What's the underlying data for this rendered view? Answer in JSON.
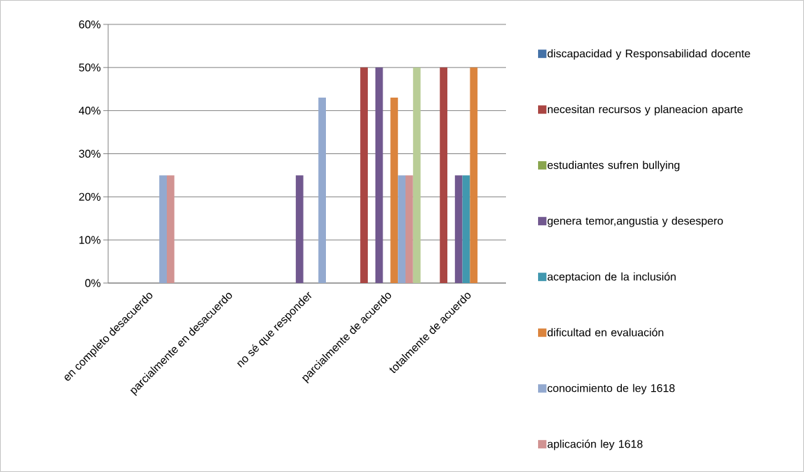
{
  "chart_data": {
    "type": "bar",
    "categories": [
      "en completo desacuerdo",
      "parcialmente en desacuerdo",
      "no sé que responder",
      "parcialmente de acuerdo",
      "totalmente de acuerdo"
    ],
    "series": [
      {
        "name": "discapacidad y  Responsabilidad docente",
        "color": "#4572a7",
        "values": [
          0,
          0,
          0,
          0,
          0
        ]
      },
      {
        "name": "necesitan recursos y planeacion aparte",
        "color": "#aa4643",
        "values": [
          0,
          0,
          0,
          50,
          50
        ]
      },
      {
        "name": "estudiantes sufren bullying",
        "color": "#89a54e",
        "values": [
          0,
          0,
          0,
          0,
          0
        ]
      },
      {
        "name": "genera temor,angustia y desespero",
        "color": "#71588f",
        "values": [
          0,
          0,
          25,
          50,
          25
        ]
      },
      {
        "name": "aceptacion de la inclusión",
        "color": "#4198af",
        "values": [
          0,
          0,
          0,
          0,
          25
        ]
      },
      {
        "name": "dificultad en evaluación",
        "color": "#db843d",
        "values": [
          0,
          0,
          0,
          43,
          50
        ]
      },
      {
        "name": "conocimiento de ley 1618",
        "color": "#93a9cf",
        "values": [
          25,
          0,
          43,
          25,
          0
        ]
      },
      {
        "name": "aplicación ley 1618",
        "color": "#d19392",
        "values": [
          25,
          0,
          0,
          25,
          0
        ]
      },
      {
        "color": "#b9cd96",
        "values": [
          0,
          0,
          0,
          50,
          0
        ]
      }
    ],
    "ylim": [
      0,
      60
    ],
    "yticks": [
      {
        "value": 0,
        "label": "0%"
      },
      {
        "value": 10,
        "label": "10%"
      },
      {
        "value": 20,
        "label": "20%"
      },
      {
        "value": 30,
        "label": "30%"
      },
      {
        "value": 40,
        "label": "40%"
      },
      {
        "value": 50,
        "label": "50%"
      },
      {
        "value": 60,
        "label": "60%"
      }
    ],
    "grid": "y",
    "legend": "right"
  }
}
